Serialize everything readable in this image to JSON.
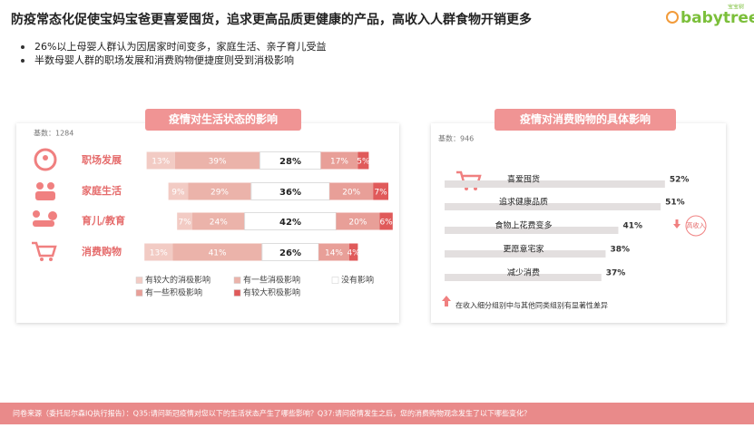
{
  "title": "防疫常态化促使宝妈宝爸更喜爱囤货，追求更高品质更健康的产品，高收入人群食物开销更多",
  "bullets": [
    "26%以上母婴人群认为因居家时间变多，家庭生活、亲子育儿受益",
    "半数母婴人群的职场发展和消费购物便捷度则受到消极影响"
  ],
  "logo": {
    "name": "babytree",
    "sub": "宝宝树"
  },
  "footer": "问卷来源（委托尼尔森IQ执行报告）：Q35:请问新冠疫情对您以下的生活状态产生了哪些影响？Q37:请问疫情发生之后，您的消费购物观念发生了以下哪些变化？",
  "chart_data": [
    {
      "type": "bar",
      "title": "疫情对生活状态的影响",
      "note": "基数：1284",
      "categories": [
        "职场发展",
        "家庭生活",
        "育儿/教育",
        "消费购物"
      ],
      "series": [
        {
          "name": "有较大的消极影响",
          "color": "#f2cbc4",
          "values": [
            13,
            9,
            7,
            13
          ],
          "value_labels": [
            "13%",
            "9%",
            "7%",
            "13%"
          ]
        },
        {
          "name": "有一些消极影响",
          "color": "#ebb3aa",
          "values": [
            39,
            29,
            24,
            41
          ],
          "value_labels": [
            "39%",
            "29%",
            "24%",
            "41%"
          ]
        },
        {
          "name": "没有影响",
          "color": "#ffffff",
          "values": [
            28,
            36,
            42,
            26
          ],
          "value_labels": [
            "28%",
            "36%",
            "42%",
            "26%"
          ]
        },
        {
          "name": "有一些积极影响",
          "color": "#e89f98",
          "values": [
            17,
            20,
            20,
            14
          ],
          "value_labels": [
            "17%",
            "20%",
            "20%",
            "14%"
          ]
        },
        {
          "name": "有较大积极影响",
          "color": "#e05a5a",
          "values": [
            5,
            7,
            6,
            4
          ],
          "value_labels": [
            "5%",
            "7%",
            "6%",
            "4%"
          ]
        }
      ]
    },
    {
      "type": "bar",
      "title": "疫情对消费购物的具体影响",
      "note": "基数：946",
      "categories": [
        "喜爱囤货",
        "追求健康品质",
        "食物上花费变多",
        "更愿意宅家",
        "减少消费"
      ],
      "values": [
        52,
        51,
        41,
        38,
        37
      ],
      "value_labels": [
        "52%",
        "51%",
        "41%",
        "38%",
        "37%"
      ],
      "color": "#e3dfdf",
      "annotation": "高收入",
      "footnote": "在收入细分组别中与其他同类组别有显著性差异"
    }
  ]
}
